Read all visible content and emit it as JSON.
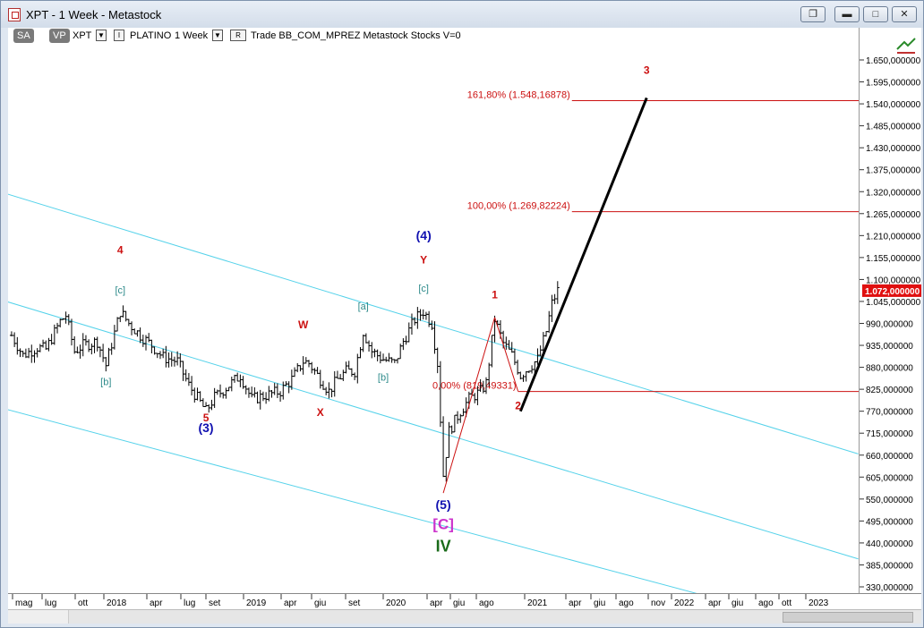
{
  "window": {
    "title": "XPT - 1 Week - Metastock"
  },
  "toolbar": {
    "sa": "SA",
    "vp": "VP",
    "symbol": "XPT",
    "i_label": "I",
    "name": "PLATINO",
    "period": "1 Week",
    "r_label": "R",
    "info": "Trade  BB_COM_MPREZ  Metastock  Stocks  V=0"
  },
  "colors": {
    "price": "#000000",
    "channel": "#55d2ea",
    "red": "#cc1111",
    "blue": "#1010b0",
    "teal": "#2d8a8a",
    "magenta": "#cc33cc",
    "green": "#1a6b1a",
    "last_price_bg": "#e01010"
  },
  "icons": [
    "app-icon",
    "restore-icon",
    "minimize-icon",
    "maximize-icon",
    "close-icon",
    "tools-icon"
  ],
  "chart_data": {
    "type": "line",
    "style": "ohlc-bars",
    "x_ticks": [
      "mag",
      "lug",
      "ott",
      "2018",
      "apr",
      "lug",
      "set",
      "2019",
      "apr",
      "giu",
      "set",
      "2020",
      "apr",
      "giu",
      "ago",
      "2021",
      "apr",
      "giu",
      "ago",
      "nov",
      "2022",
      "apr",
      "giu",
      "ago",
      "ott",
      "2023"
    ],
    "y_ticks": [
      "1.650,000000",
      "1.595,000000",
      "1.540,000000",
      "1.485,000000",
      "1.430,000000",
      "1.375,000000",
      "1.320,000000",
      "1.265,000000",
      "1.210,000000",
      "1.155,000000",
      "1.100,000000",
      "1.045,000000",
      "990,000000",
      "935,000000",
      "880,000000",
      "825,000000",
      "770,000000",
      "715,000000",
      "660,000000",
      "605,000000",
      "550,000000",
      "495,000000",
      "440,000000",
      "385,000000",
      "330,000000"
    ],
    "ylim": [
      305,
      1715
    ],
    "last_price": {
      "label": "1.072,000000",
      "value": 1072
    },
    "price": [
      [
        "2017-04-28",
        960
      ],
      [
        "2017-05-26",
        910
      ],
      [
        "2017-06-30",
        930
      ],
      [
        "2017-07-21",
        925
      ],
      [
        "2017-08-25",
        995
      ],
      [
        "2017-09-08",
        1010
      ],
      [
        "2017-09-29",
        920
      ],
      [
        "2017-10-20",
        935
      ],
      [
        "2017-11-24",
        945
      ],
      [
        "2017-12-15",
        885
      ],
      [
        "2018-01-19",
        1020
      ],
      [
        "2018-02-09",
        990
      ],
      [
        "2018-03-09",
        960
      ],
      [
        "2018-04-06",
        935
      ],
      [
        "2018-05-04",
        905
      ],
      [
        "2018-06-08",
        895
      ],
      [
        "2018-07-06",
        835
      ],
      [
        "2018-08-17",
        770
      ],
      [
        "2018-09-07",
        805
      ],
      [
        "2018-10-12",
        835
      ],
      [
        "2018-11-09",
        860
      ],
      [
        "2018-12-07",
        800
      ],
      [
        "2019-01-11",
        810
      ],
      [
        "2019-02-15",
        820
      ],
      [
        "2019-03-15",
        850
      ],
      [
        "2019-04-12",
        895
      ],
      [
        "2019-04-26",
        890
      ],
      [
        "2019-05-24",
        850
      ],
      [
        "2019-06-14",
        820
      ],
      [
        "2019-07-05",
        850
      ],
      [
        "2019-07-26",
        870
      ],
      [
        "2019-08-16",
        870
      ],
      [
        "2019-09-06",
        970
      ],
      [
        "2019-09-27",
        920
      ],
      [
        "2019-10-25",
        900
      ],
      [
        "2019-11-22",
        890
      ],
      [
        "2019-12-13",
        945
      ],
      [
        "2020-01-10",
        1000
      ],
      [
        "2020-01-31",
        1020
      ],
      [
        "2020-02-21",
        990
      ],
      [
        "2020-03-06",
        890
      ],
      [
        "2020-03-20",
        610
      ],
      [
        "2020-04-03",
        720
      ],
      [
        "2020-05-01",
        770
      ],
      [
        "2020-05-22",
        800
      ],
      [
        "2020-06-19",
        820
      ],
      [
        "2020-07-03",
        840
      ],
      [
        "2020-07-24",
        1000
      ],
      [
        "2020-08-14",
        940
      ],
      [
        "2020-09-04",
        910
      ],
      [
        "2020-09-25",
        860
      ],
      [
        "2020-10-16",
        880
      ],
      [
        "2020-11-06",
        900
      ],
      [
        "2020-11-27",
        970
      ],
      [
        "2020-12-11",
        1040
      ],
      [
        "2020-12-25",
        1072
      ]
    ],
    "channels": [
      {
        "from": [
          "2017-04-15",
          1315
        ],
        "to": [
          "2022-12-31",
          663
        ]
      },
      {
        "from": [
          "2017-04-15",
          1045
        ],
        "to": [
          "2022-12-31",
          400
        ]
      },
      {
        "from": [
          "2017-04-15",
          775
        ],
        "to": [
          "2021-12-31",
          305
        ]
      }
    ],
    "fib_levels": [
      {
        "label": "161,80% (1.548,16878)",
        "value": 1548.16878,
        "from": "2021-01-29"
      },
      {
        "label": "100,00% (1.269,82224)",
        "value": 1269.82224,
        "from": "2021-01-29"
      },
      {
        "label": "0,00% (819,49331)",
        "value": 819.49331,
        "from": "2020-09-19"
      }
    ],
    "projection": {
      "from": [
        "2020-09-25",
        770
      ],
      "to": [
        "2021-07-31",
        1555
      ]
    },
    "wave_lines": [
      {
        "from": [
          "2020-03-20",
          565
        ],
        "to": [
          "2020-07-24",
          1005
        ]
      },
      {
        "from": [
          "2020-07-24",
          1005
        ],
        "to": [
          "2020-09-19",
          820
        ]
      }
    ],
    "wave_labels": [
      {
        "text": "4",
        "x": "2018-01-19",
        "y": 1165,
        "color": "red"
      },
      {
        "text": "[c]",
        "x": "2018-01-19",
        "y": 1065,
        "color": "teal"
      },
      {
        "text": "[b]",
        "x": "2017-12-15",
        "y": 835,
        "color": "teal"
      },
      {
        "text": "5",
        "x": "2018-08-17",
        "y": 745,
        "color": "red"
      },
      {
        "text": "(3)",
        "x": "2018-08-17",
        "y": 718,
        "color": "blue"
      },
      {
        "text": "W",
        "x": "2019-04-12",
        "y": 978,
        "color": "red"
      },
      {
        "text": "X",
        "x": "2019-05-24",
        "y": 758,
        "color": "red"
      },
      {
        "text": "[a]",
        "x": "2019-09-06",
        "y": 1025,
        "color": "teal"
      },
      {
        "text": "[b]",
        "x": "2019-10-25",
        "y": 847,
        "color": "teal"
      },
      {
        "text": "(4)",
        "x": "2020-02-01",
        "y": 1200,
        "color": "blue"
      },
      {
        "text": "Y",
        "x": "2020-02-01",
        "y": 1140,
        "color": "red"
      },
      {
        "text": "[c]",
        "x": "2020-02-01",
        "y": 1070,
        "color": "teal"
      },
      {
        "text": "1",
        "x": "2020-07-24",
        "y": 1053,
        "color": "red"
      },
      {
        "text": "2",
        "x": "2020-09-19",
        "y": 775,
        "color": "red"
      },
      {
        "text": "3",
        "x": "2021-07-31",
        "y": 1615,
        "color": "red"
      },
      {
        "text": "(5)",
        "x": "2020-03-20",
        "y": 525,
        "color": "blue"
      },
      {
        "text": "[C]",
        "x": "2020-03-20",
        "y": 475,
        "color": "magenta"
      },
      {
        "text": "IV",
        "x": "2020-03-20",
        "y": 418,
        "color": "green"
      }
    ]
  }
}
